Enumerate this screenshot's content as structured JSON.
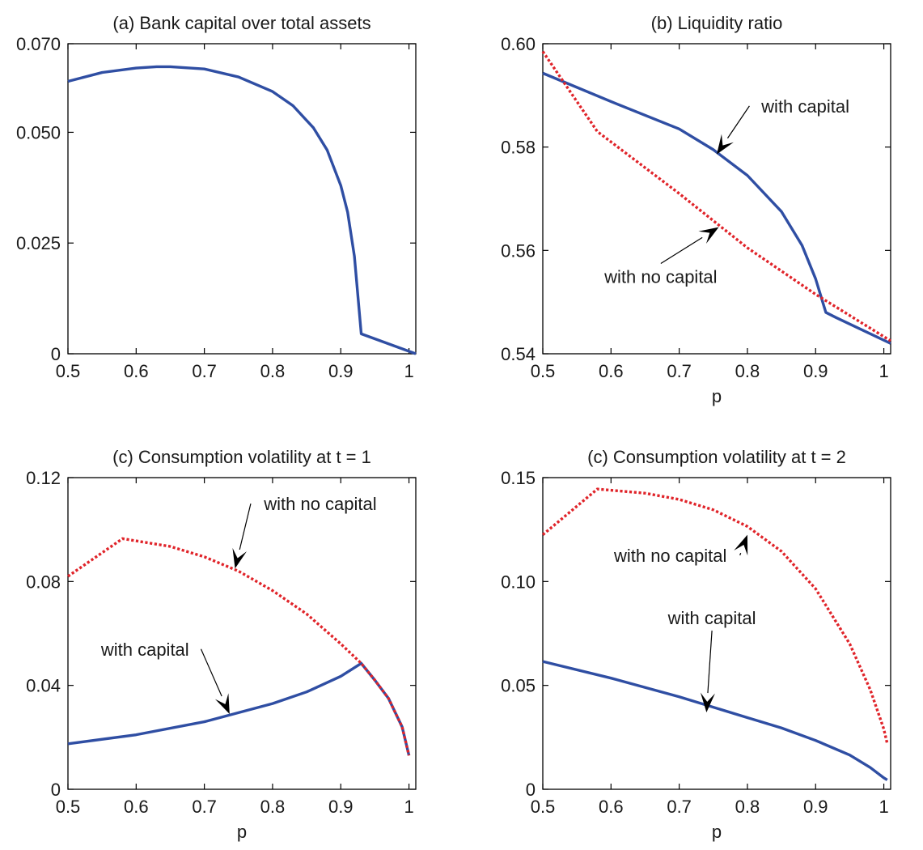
{
  "chart_data": [
    {
      "type": "line",
      "title": "(a) Bank capital over total assets",
      "xlabel": "",
      "ylabel": "",
      "xlim": [
        0.5,
        1.01
      ],
      "ylim": [
        0,
        0.07
      ],
      "xticks": [
        0.5,
        0.6,
        0.7,
        0.8,
        0.9,
        1
      ],
      "xtick_labels": [
        "0.5",
        "0.6",
        "0.7",
        "0.8",
        "0.9",
        "1"
      ],
      "yticks": [
        0,
        0.025,
        0.05,
        0.07
      ],
      "ytick_labels": [
        "0",
        "0.025",
        "0.050",
        "0.070"
      ],
      "series": [
        {
          "style": "solid",
          "color": "#2f4ea3",
          "x": [
            0.5,
            0.55,
            0.6,
            0.63,
            0.65,
            0.7,
            0.75,
            0.8,
            0.83,
            0.86,
            0.88,
            0.9,
            0.91,
            0.92,
            0.93,
            1.01
          ],
          "y": [
            0.0615,
            0.0635,
            0.0645,
            0.0648,
            0.0648,
            0.0643,
            0.0625,
            0.0592,
            0.056,
            0.051,
            0.046,
            0.038,
            0.032,
            0.022,
            0.0045,
            0.0
          ]
        }
      ],
      "annotations": []
    },
    {
      "type": "line",
      "title": "(b) Liquidity ratio",
      "xlabel": "p",
      "ylabel": "",
      "xlim": [
        0.5,
        1.01
      ],
      "ylim": [
        0.54,
        0.6
      ],
      "xticks": [
        0.5,
        0.6,
        0.7,
        0.8,
        0.9,
        1
      ],
      "xtick_labels": [
        "0.5",
        "0.6",
        "0.7",
        "0.8",
        "0.9",
        "1"
      ],
      "yticks": [
        0.54,
        0.56,
        0.58,
        0.6
      ],
      "ytick_labels": [
        "0.54",
        "0.56",
        "0.58",
        "0.60"
      ],
      "series": [
        {
          "style": "solid",
          "color": "#2f4ea3",
          "x": [
            0.5,
            0.6,
            0.7,
            0.75,
            0.8,
            0.85,
            0.88,
            0.9,
            0.915,
            0.93,
            1.01
          ],
          "y": [
            0.5943,
            0.5888,
            0.5835,
            0.5795,
            0.5745,
            0.5675,
            0.561,
            0.5545,
            0.548,
            0.547,
            0.542
          ]
        },
        {
          "style": "dotted",
          "color": "#e0242a",
          "x": [
            0.5,
            0.58,
            0.7,
            0.8,
            0.9,
            1.01
          ],
          "y": [
            0.5985,
            0.583,
            0.571,
            0.5605,
            0.5515,
            0.5425
          ]
        }
      ],
      "annotations": [
        {
          "text": "with capital",
          "x": 0.885,
          "y": 0.5867,
          "arrow_to": [
            0.755,
            0.5786
          ]
        },
        {
          "text": "with no capital",
          "x": 0.673,
          "y": 0.5537,
          "arrow_to": [
            0.758,
            0.5645
          ]
        }
      ]
    },
    {
      "type": "line",
      "title": "(c) Consumption volatility at t = 1",
      "xlabel": "p",
      "ylabel": "",
      "xlim": [
        0.5,
        1.01
      ],
      "ylim": [
        0,
        0.12
      ],
      "xticks": [
        0.5,
        0.6,
        0.7,
        0.8,
        0.9,
        1
      ],
      "xtick_labels": [
        "0.5",
        "0.6",
        "0.7",
        "0.8",
        "0.9",
        "1"
      ],
      "yticks": [
        0,
        0.04,
        0.08,
        0.12
      ],
      "ytick_labels": [
        "0",
        "0.04",
        "0.08",
        "0.12"
      ],
      "series": [
        {
          "style": "solid",
          "color": "#2f4ea3",
          "x": [
            0.5,
            0.6,
            0.7,
            0.8,
            0.85,
            0.9,
            0.93,
            0.95,
            0.97,
            0.99,
            1.0
          ],
          "y": [
            0.0175,
            0.021,
            0.026,
            0.033,
            0.0375,
            0.0435,
            0.0485,
            0.042,
            0.035,
            0.024,
            0.013
          ]
        },
        {
          "style": "dotted",
          "color": "#e0242a",
          "x": [
            0.5,
            0.58,
            0.65,
            0.7,
            0.75,
            0.8,
            0.85,
            0.9,
            0.93,
            0.95,
            0.97,
            0.99,
            1.0
          ],
          "y": [
            0.082,
            0.0965,
            0.0935,
            0.0895,
            0.084,
            0.0765,
            0.0675,
            0.056,
            0.0485,
            0.042,
            0.035,
            0.024,
            0.013
          ]
        }
      ],
      "annotations": [
        {
          "text": "with no capital",
          "x": 0.87,
          "y": 0.1075,
          "arrow_to": [
            0.745,
            0.085
          ]
        },
        {
          "text": "with capital",
          "x": 0.613,
          "y": 0.0515,
          "arrow_to": [
            0.737,
            0.029
          ]
        }
      ]
    },
    {
      "type": "line",
      "title": "(c) Consumption volatility at t = 2",
      "xlabel": "p",
      "ylabel": "",
      "xlim": [
        0.5,
        1.01
      ],
      "ylim": [
        0,
        0.15
      ],
      "xticks": [
        0.5,
        0.6,
        0.7,
        0.8,
        0.9,
        1
      ],
      "xtick_labels": [
        "0.5",
        "0.6",
        "0.7",
        "0.8",
        "0.9",
        "1"
      ],
      "yticks": [
        0,
        0.05,
        0.1,
        0.15
      ],
      "ytick_labels": [
        "0",
        "0.05",
        "0.10",
        "0.15"
      ],
      "series": [
        {
          "style": "solid",
          "color": "#2f4ea3",
          "x": [
            0.5,
            0.6,
            0.7,
            0.8,
            0.85,
            0.9,
            0.95,
            0.98,
            1.0,
            1.005
          ],
          "y": [
            0.0615,
            0.0535,
            0.0445,
            0.0345,
            0.0295,
            0.0235,
            0.0165,
            0.0105,
            0.0055,
            0.0045
          ]
        },
        {
          "style": "dotted",
          "color": "#e0242a",
          "x": [
            0.5,
            0.58,
            0.65,
            0.7,
            0.75,
            0.8,
            0.85,
            0.9,
            0.95,
            0.98,
            1.0,
            1.005
          ],
          "y": [
            0.1225,
            0.1445,
            0.1425,
            0.1395,
            0.1345,
            0.1265,
            0.1145,
            0.0965,
            0.07,
            0.048,
            0.029,
            0.022
          ]
        }
      ],
      "annotations": [
        {
          "text": "with no capital",
          "x": 0.687,
          "y": 0.1095,
          "arrow_to": [
            0.8,
            0.1225
          ]
        },
        {
          "text": "with capital",
          "x": 0.748,
          "y": 0.0795,
          "arrow_to": [
            0.74,
            0.037
          ]
        }
      ]
    }
  ]
}
